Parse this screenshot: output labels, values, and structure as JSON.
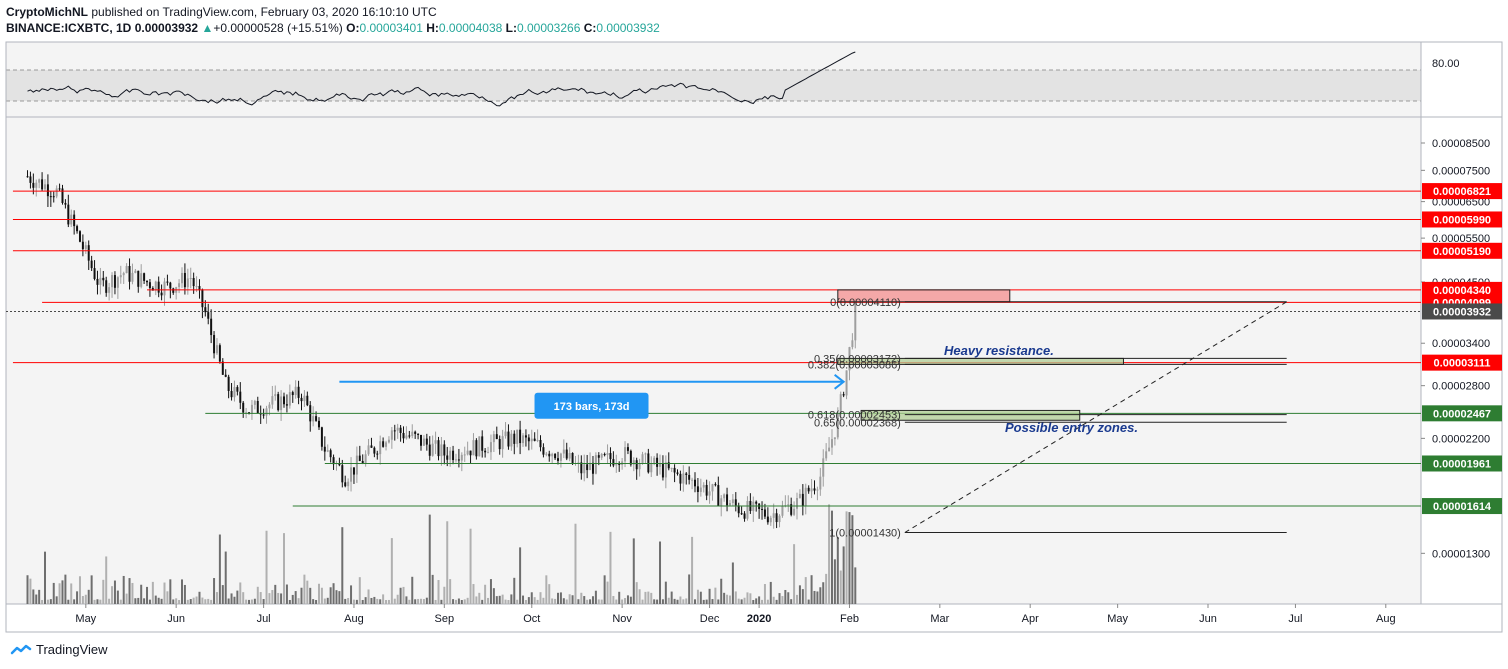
{
  "header": {
    "publisher": "CryptoMichNL",
    "published_text": "published on TradingView.com, February 03, 2020 16:10:10 UTC",
    "symbol": "BINANCE:ICXBTC, 1D",
    "last": "0.00003932",
    "change_arrow": "▲",
    "change": "+0.00000528 (+15.51%)",
    "o_label": "O:",
    "o": "0.00003401",
    "h_label": "H:",
    "h": "0.00004038",
    "l_label": "L:",
    "l": "0.00003266",
    "c_label": "C:",
    "c": "0.00003932"
  },
  "footer": {
    "brand": "TradingView",
    "logo_icon": "tradingview-logo-icon"
  },
  "colors": {
    "resistance": "#ff0000",
    "support": "#2e7d32",
    "current": "#4a4a4a",
    "arrow": "#2196f3",
    "up": "#26a69a"
  },
  "chart_data": {
    "type": "candlestick",
    "symbol": "BINANCE:ICXBTC",
    "interval": "1D",
    "x_ticks": [
      "May",
      "Jun",
      "Jul",
      "Aug",
      "Sep",
      "Oct",
      "Nov",
      "Dec",
      "2020",
      "Feb",
      "Mar",
      "Apr",
      "May",
      "Jun",
      "Jul",
      "Aug"
    ],
    "y_ticks": [
      "0.00008500",
      "0.00007500",
      "0.00006500",
      "0.00005500",
      "0.00004500",
      "0.00003400",
      "0.00002800",
      "0.00002200",
      "0.00001300"
    ],
    "ylim": [
      1.05e-05,
      9.4e-05
    ],
    "y_scale": "log",
    "price_path": [
      [
        "2019-04-25",
        7.3e-05
      ],
      [
        "2019-05-05",
        6.8e-05
      ],
      [
        "2019-05-12",
        5.6e-05
      ],
      [
        "2019-05-20",
        4.4e-05
      ],
      [
        "2019-05-28",
        4.7e-05
      ],
      [
        "2019-06-05",
        4.5e-05
      ],
      [
        "2019-06-12",
        4.4e-05
      ],
      [
        "2019-06-20",
        4.6e-05
      ],
      [
        "2019-06-25",
        3.9e-05
      ],
      [
        "2019-07-02",
        2.8e-05
      ],
      [
        "2019-07-10",
        2.5e-05
      ],
      [
        "2019-07-20",
        2.6e-05
      ],
      [
        "2019-07-28",
        2.7e-05
      ],
      [
        "2019-08-05",
        2.1e-05
      ],
      [
        "2019-08-12",
        1.85e-05
      ],
      [
        "2019-08-22",
        2.1e-05
      ],
      [
        "2019-08-28",
        2.3e-05
      ],
      [
        "2019-09-05",
        2.2e-05
      ],
      [
        "2019-09-15",
        2.05e-05
      ],
      [
        "2019-10-01",
        2.15e-05
      ],
      [
        "2019-10-10",
        2.2e-05
      ],
      [
        "2019-10-25",
        2.05e-05
      ],
      [
        "2019-11-01",
        1.9e-05
      ],
      [
        "2019-11-15",
        2.05e-05
      ],
      [
        "2019-11-25",
        1.95e-05
      ],
      [
        "2019-12-10",
        1.8e-05
      ],
      [
        "2019-12-25",
        1.6e-05
      ],
      [
        "2020-01-05",
        1.55e-05
      ],
      [
        "2020-01-15",
        1.65e-05
      ],
      [
        "2020-01-22",
        1.85e-05
      ],
      [
        "2020-01-28",
        2.4e-05
      ],
      [
        "2020-01-31",
        3e-05
      ],
      [
        "2020-02-03",
        3.93e-05
      ]
    ],
    "h_lines": [
      {
        "price": 6.821e-05,
        "label": "0.00006821",
        "color": "#ff0000",
        "from": "2019-04-20"
      },
      {
        "price": 5.99e-05,
        "label": "0.00005990",
        "color": "#ff0000",
        "from": "2019-04-20"
      },
      {
        "price": 5.19e-05,
        "label": "0.00005190",
        "color": "#ff0000",
        "from": "2019-04-20"
      },
      {
        "price": 4.34e-05,
        "label": "0.00004340",
        "color": "#ff0000",
        "from": "2019-06-05"
      },
      {
        "price": 4.099e-05,
        "label": "0.00004099",
        "color": "#ff0000",
        "from": "2019-04-30"
      },
      {
        "price": 3.111e-05,
        "label": "0.00003111",
        "color": "#ff0000",
        "from": "2019-04-20"
      },
      {
        "price": 2.467e-05,
        "label": "0.00002467",
        "color": "#2e7d32",
        "from": "2019-06-25"
      },
      {
        "price": 1.961e-05,
        "label": "0.00001961",
        "color": "#2e7d32",
        "from": "2019-08-05"
      },
      {
        "price": 1.614e-05,
        "label": "0.00001614",
        "color": "#2e7d32",
        "from": "2019-07-25"
      }
    ],
    "current_price": {
      "price": 3.932e-05,
      "label": "0.00003932"
    },
    "fib_levels": [
      {
        "label": "0(0.00004110)",
        "price": 4.11e-05
      },
      {
        "label": "0.35(0.00003172)",
        "price": 3.172e-05
      },
      {
        "label": "0.382(0.00003086)",
        "price": 3.086e-05
      },
      {
        "label": "0.618(0.00002453)",
        "price": 2.453e-05
      },
      {
        "label": "0.65(0.00002368)",
        "price": 2.368e-05
      },
      {
        "label": "1(0.00001430)",
        "price": 1.43e-05
      }
    ],
    "annotations": {
      "resistance_text": "Heavy resistance.",
      "entry_text": "Possible entry zones.",
      "bars_label": "173 bars, 173d"
    },
    "zones": [
      {
        "type": "resistance",
        "from": "2020-01-28",
        "to": "2020-03-27",
        "top": 4.34e-05,
        "bottom": 4.11e-05
      },
      {
        "type": "entry",
        "from": "2020-01-28",
        "to": "2020-05-05",
        "top": 3.172e-05,
        "bottom": 3.086e-05
      },
      {
        "type": "entry",
        "from": "2020-02-05",
        "to": "2020-04-20",
        "top": 2.5e-05,
        "bottom": 2.39e-05
      }
    ],
    "measure": {
      "from": "2019-08-10",
      "to": "2020-01-30",
      "price": 2.85e-05
    },
    "fib_trend": {
      "from_date": "2020-02-20",
      "from_price": 1.43e-05,
      "to_date": "2020-06-30",
      "to_price": 4.11e-05
    },
    "rsi": {
      "level_upper": "80.00"
    }
  }
}
